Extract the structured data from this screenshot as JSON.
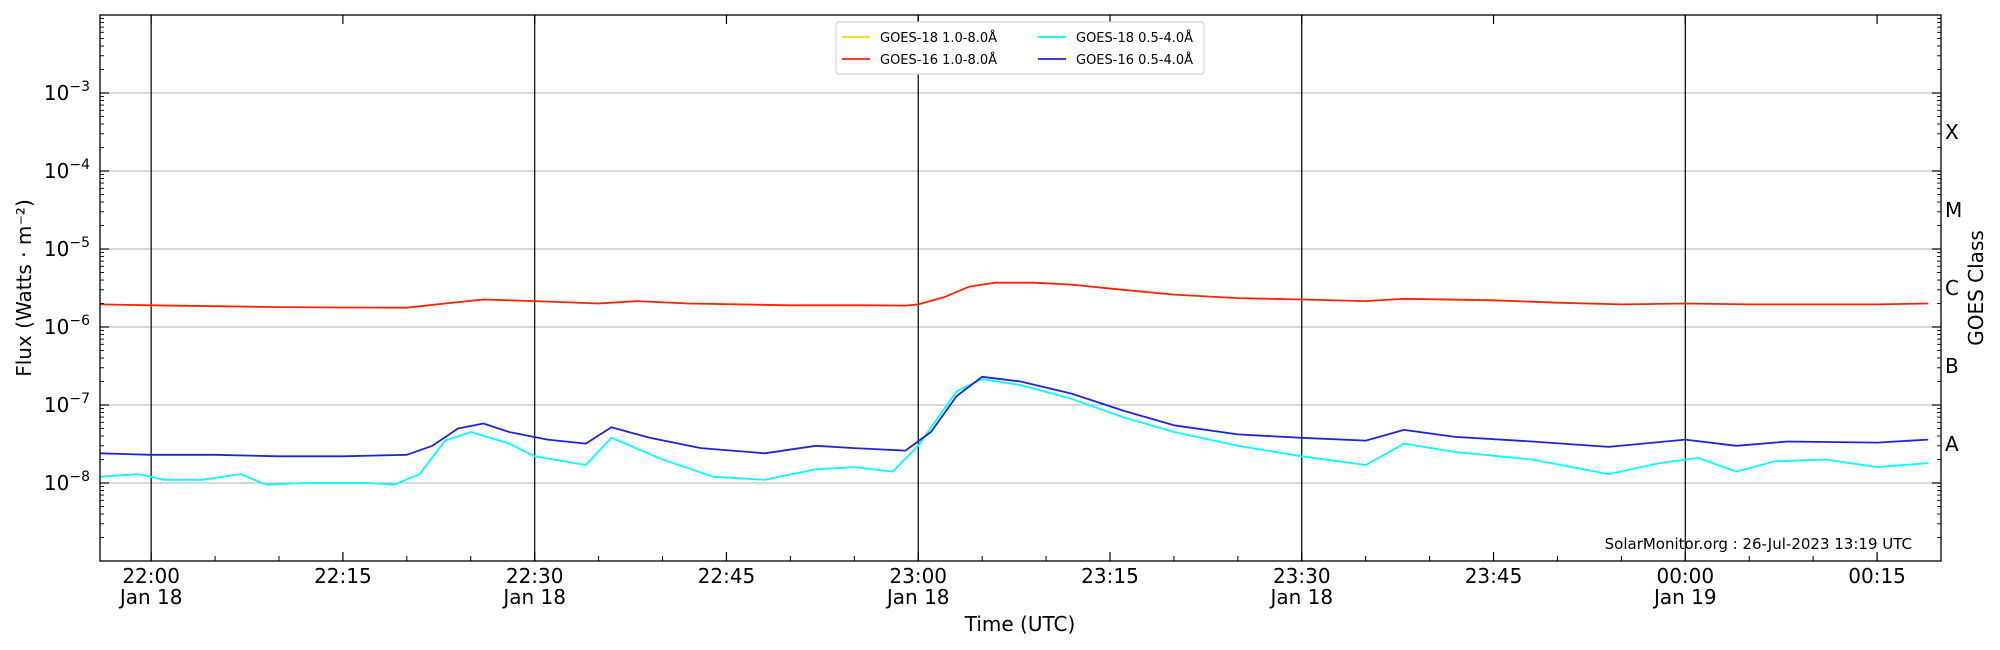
{
  "chart_data": {
    "type": "line",
    "xlabel": "Time (UTC)",
    "ylabel": "Flux (Watts · m⁻²)",
    "ylabel_right": "GOES Class",
    "xlim": [
      "2023-01-18T21:56",
      "2023-01-19T00:20"
    ],
    "ylim": [
      1e-09,
      0.01
    ],
    "yscale": "log",
    "grid": "horizontal at decades",
    "legend_position": "top-center",
    "credit": "SolarMonitor.org : 26-Jul-2023 13:19 UTC",
    "x_ticks": [
      {
        "time": "2023-01-18T22:00",
        "line1": "22:00",
        "line2": "Jan 18"
      },
      {
        "time": "2023-01-18T22:15",
        "line1": "22:15",
        "line2": ""
      },
      {
        "time": "2023-01-18T22:30",
        "line1": "22:30",
        "line2": "Jan 18"
      },
      {
        "time": "2023-01-18T22:45",
        "line1": "22:45",
        "line2": ""
      },
      {
        "time": "2023-01-18T23:00",
        "line1": "23:00",
        "line2": "Jan 18"
      },
      {
        "time": "2023-01-18T23:15",
        "line1": "23:15",
        "line2": ""
      },
      {
        "time": "2023-01-18T23:30",
        "line1": "23:30",
        "line2": "Jan 18"
      },
      {
        "time": "2023-01-18T23:45",
        "line1": "23:45",
        "line2": ""
      },
      {
        "time": "2023-01-19T00:00",
        "line1": "00:00",
        "line2": "Jan 19"
      },
      {
        "time": "2023-01-19T00:15",
        "line1": "00:15",
        "line2": ""
      }
    ],
    "vertical_markers": [
      "2023-01-18T22:00",
      "2023-01-18T22:30",
      "2023-01-18T23:00",
      "2023-01-18T23:30",
      "2023-01-19T00:00"
    ],
    "y_ticks": [
      {
        "value": 1e-08,
        "base": "10",
        "exp": "−8"
      },
      {
        "value": 1e-07,
        "base": "10",
        "exp": "−7"
      },
      {
        "value": 1e-06,
        "base": "10",
        "exp": "−6"
      },
      {
        "value": 1e-05,
        "base": "10",
        "exp": "−5"
      },
      {
        "value": 0.0001,
        "base": "10",
        "exp": "−4"
      },
      {
        "value": 0.001,
        "base": "10",
        "exp": "−3"
      }
    ],
    "goes_classes": [
      {
        "label": "A",
        "value": 3.16e-08
      },
      {
        "label": "B",
        "value": 3.16e-07
      },
      {
        "label": "C",
        "value": 3.16e-06
      },
      {
        "label": "M",
        "value": 3.16e-05
      },
      {
        "label": "X",
        "value": 0.000316
      }
    ],
    "series": [
      {
        "name": "GOES-18 1.0-8.0Å",
        "color": "#ffd700",
        "points": []
      },
      {
        "name": "GOES-16 1.0-8.0Å",
        "color": "#ff2200",
        "points": [
          [
            "2023-01-18T21:56",
            1.95e-06
          ],
          [
            "2023-01-18T22:00",
            1.9e-06
          ],
          [
            "2023-01-18T22:05",
            1.85e-06
          ],
          [
            "2023-01-18T22:10",
            1.8e-06
          ],
          [
            "2023-01-18T22:15",
            1.78e-06
          ],
          [
            "2023-01-18T22:20",
            1.77e-06
          ],
          [
            "2023-01-18T22:23",
            2e-06
          ],
          [
            "2023-01-18T22:26",
            2.25e-06
          ],
          [
            "2023-01-18T22:30",
            2.15e-06
          ],
          [
            "2023-01-18T22:35",
            2e-06
          ],
          [
            "2023-01-18T22:38",
            2.15e-06
          ],
          [
            "2023-01-18T22:42",
            2e-06
          ],
          [
            "2023-01-18T22:50",
            1.9e-06
          ],
          [
            "2023-01-18T22:56",
            1.9e-06
          ],
          [
            "2023-01-18T22:59",
            1.88e-06
          ],
          [
            "2023-01-18T23:00",
            1.95e-06
          ],
          [
            "2023-01-18T23:02",
            2.4e-06
          ],
          [
            "2023-01-18T23:04",
            3.3e-06
          ],
          [
            "2023-01-18T23:06",
            3.7e-06
          ],
          [
            "2023-01-18T23:09",
            3.7e-06
          ],
          [
            "2023-01-18T23:12",
            3.5e-06
          ],
          [
            "2023-01-18T23:16",
            3e-06
          ],
          [
            "2023-01-18T23:20",
            2.6e-06
          ],
          [
            "2023-01-18T23:25",
            2.35e-06
          ],
          [
            "2023-01-18T23:30",
            2.25e-06
          ],
          [
            "2023-01-18T23:35",
            2.15e-06
          ],
          [
            "2023-01-18T23:38",
            2.3e-06
          ],
          [
            "2023-01-18T23:45",
            2.2e-06
          ],
          [
            "2023-01-18T23:50",
            2.05e-06
          ],
          [
            "2023-01-18T23:55",
            1.95e-06
          ],
          [
            "2023-01-19T00:00",
            2e-06
          ],
          [
            "2023-01-19T00:05",
            1.95e-06
          ],
          [
            "2023-01-19T00:10",
            1.95e-06
          ],
          [
            "2023-01-19T00:15",
            1.95e-06
          ],
          [
            "2023-01-19T00:19",
            2e-06
          ]
        ]
      },
      {
        "name": "GOES-18 0.5-4.0Å",
        "color": "#00ffff",
        "points": [
          [
            "2023-01-18T21:56",
            1.2e-08
          ],
          [
            "2023-01-18T21:59",
            1.3e-08
          ],
          [
            "2023-01-18T22:01",
            1.1e-08
          ],
          [
            "2023-01-18T22:04",
            1.1e-08
          ],
          [
            "2023-01-18T22:07",
            1.3e-08
          ],
          [
            "2023-01-18T22:09",
            9.5e-09
          ],
          [
            "2023-01-18T22:12",
            1e-08
          ],
          [
            "2023-01-18T22:17",
            1e-08
          ],
          [
            "2023-01-18T22:19",
            9.5e-09
          ],
          [
            "2023-01-18T22:21",
            1.3e-08
          ],
          [
            "2023-01-18T22:23",
            3.5e-08
          ],
          [
            "2023-01-18T22:25",
            4.5e-08
          ],
          [
            "2023-01-18T22:28",
            3.2e-08
          ],
          [
            "2023-01-18T22:30",
            2.2e-08
          ],
          [
            "2023-01-18T22:34",
            1.7e-08
          ],
          [
            "2023-01-18T22:36",
            3.8e-08
          ],
          [
            "2023-01-18T22:40",
            2e-08
          ],
          [
            "2023-01-18T22:44",
            1.2e-08
          ],
          [
            "2023-01-18T22:48",
            1.1e-08
          ],
          [
            "2023-01-18T22:52",
            1.5e-08
          ],
          [
            "2023-01-18T22:55",
            1.6e-08
          ],
          [
            "2023-01-18T22:58",
            1.4e-08
          ],
          [
            "2023-01-18T23:00",
            3e-08
          ],
          [
            "2023-01-18T23:03",
            1.5e-07
          ],
          [
            "2023-01-18T23:05",
            2.15e-07
          ],
          [
            "2023-01-18T23:08",
            1.8e-07
          ],
          [
            "2023-01-18T23:12",
            1.2e-07
          ],
          [
            "2023-01-18T23:16",
            7e-08
          ],
          [
            "2023-01-18T23:20",
            4.5e-08
          ],
          [
            "2023-01-18T23:25",
            3e-08
          ],
          [
            "2023-01-18T23:30",
            2.2e-08
          ],
          [
            "2023-01-18T23:35",
            1.7e-08
          ],
          [
            "2023-01-18T23:38",
            3.2e-08
          ],
          [
            "2023-01-18T23:42",
            2.5e-08
          ],
          [
            "2023-01-18T23:48",
            2e-08
          ],
          [
            "2023-01-18T23:54",
            1.3e-08
          ],
          [
            "2023-01-18T23:58",
            1.8e-08
          ],
          [
            "2023-01-19T00:01",
            2.1e-08
          ],
          [
            "2023-01-19T00:04",
            1.4e-08
          ],
          [
            "2023-01-19T00:07",
            1.9e-08
          ],
          [
            "2023-01-19T00:11",
            2e-08
          ],
          [
            "2023-01-19T00:15",
            1.6e-08
          ],
          [
            "2023-01-19T00:19",
            1.8e-08
          ]
        ]
      },
      {
        "name": "GOES-16 0.5-4.0Å",
        "color": "#2222dd",
        "points": [
          [
            "2023-01-18T21:56",
            2.4e-08
          ],
          [
            "2023-01-18T22:00",
            2.3e-08
          ],
          [
            "2023-01-18T22:05",
            2.3e-08
          ],
          [
            "2023-01-18T22:10",
            2.2e-08
          ],
          [
            "2023-01-18T22:15",
            2.2e-08
          ],
          [
            "2023-01-18T22:20",
            2.3e-08
          ],
          [
            "2023-01-18T22:22",
            3e-08
          ],
          [
            "2023-01-18T22:24",
            5e-08
          ],
          [
            "2023-01-18T22:26",
            5.8e-08
          ],
          [
            "2023-01-18T22:28",
            4.5e-08
          ],
          [
            "2023-01-18T22:31",
            3.6e-08
          ],
          [
            "2023-01-18T22:34",
            3.2e-08
          ],
          [
            "2023-01-18T22:36",
            5.2e-08
          ],
          [
            "2023-01-18T22:39",
            3.8e-08
          ],
          [
            "2023-01-18T22:43",
            2.8e-08
          ],
          [
            "2023-01-18T22:48",
            2.4e-08
          ],
          [
            "2023-01-18T22:52",
            3e-08
          ],
          [
            "2023-01-18T22:55",
            2.8e-08
          ],
          [
            "2023-01-18T22:59",
            2.6e-08
          ],
          [
            "2023-01-18T23:01",
            4.5e-08
          ],
          [
            "2023-01-18T23:03",
            1.3e-07
          ],
          [
            "2023-01-18T23:05",
            2.3e-07
          ],
          [
            "2023-01-18T23:08",
            2e-07
          ],
          [
            "2023-01-18T23:12",
            1.4e-07
          ],
          [
            "2023-01-18T23:16",
            8.5e-08
          ],
          [
            "2023-01-18T23:20",
            5.5e-08
          ],
          [
            "2023-01-18T23:25",
            4.2e-08
          ],
          [
            "2023-01-18T23:30",
            3.8e-08
          ],
          [
            "2023-01-18T23:35",
            3.5e-08
          ],
          [
            "2023-01-18T23:38",
            4.8e-08
          ],
          [
            "2023-01-18T23:42",
            3.9e-08
          ],
          [
            "2023-01-18T23:48",
            3.4e-08
          ],
          [
            "2023-01-18T23:54",
            2.9e-08
          ],
          [
            "2023-01-19T00:00",
            3.6e-08
          ],
          [
            "2023-01-19T00:04",
            3e-08
          ],
          [
            "2023-01-19T00:08",
            3.4e-08
          ],
          [
            "2023-01-19T00:15",
            3.3e-08
          ],
          [
            "2023-01-19T00:19",
            3.6e-08
          ]
        ]
      }
    ]
  }
}
